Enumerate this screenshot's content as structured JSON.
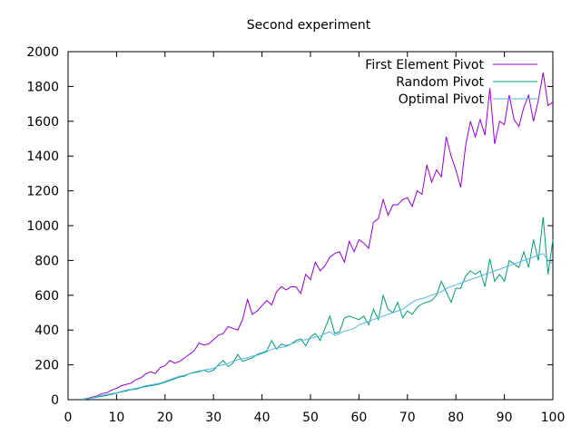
{
  "chart_data": {
    "type": "line",
    "title": "Second experiment",
    "xlabel": "",
    "ylabel": "",
    "xlim": [
      0,
      100
    ],
    "ylim": [
      0,
      2000
    ],
    "xticks": [
      0,
      10,
      20,
      30,
      40,
      50,
      60,
      70,
      80,
      90,
      100
    ],
    "yticks": [
      0,
      200,
      400,
      600,
      800,
      1000,
      1200,
      1400,
      1600,
      1800,
      2000
    ],
    "legend_position": "top-right",
    "grid": false,
    "series": [
      {
        "name": "First Element Pivot",
        "color": "#9400d3",
        "x": [
          3,
          4,
          5,
          6,
          7,
          8,
          9,
          10,
          11,
          12,
          13,
          14,
          15,
          16,
          17,
          18,
          19,
          20,
          21,
          22,
          23,
          24,
          25,
          26,
          27,
          28,
          29,
          30,
          31,
          32,
          33,
          34,
          35,
          36,
          37,
          38,
          39,
          40,
          41,
          42,
          43,
          44,
          45,
          46,
          47,
          48,
          49,
          50,
          51,
          52,
          53,
          54,
          55,
          56,
          57,
          58,
          59,
          60,
          61,
          62,
          63,
          64,
          65,
          66,
          67,
          68,
          69,
          70,
          71,
          72,
          73,
          74,
          75,
          76,
          77,
          78,
          79,
          80,
          81,
          82,
          83,
          84,
          85,
          86,
          87,
          88,
          89,
          90,
          91,
          92,
          93,
          94,
          95,
          96,
          97,
          98,
          99,
          100
        ],
        "y": [
          3,
          8,
          15,
          22,
          35,
          40,
          55,
          65,
          80,
          88,
          95,
          115,
          125,
          148,
          160,
          150,
          185,
          195,
          225,
          210,
          220,
          240,
          260,
          280,
          325,
          315,
          320,
          345,
          370,
          380,
          420,
          410,
          400,
          460,
          575,
          490,
          510,
          540,
          570,
          545,
          620,
          650,
          630,
          650,
          648,
          610,
          720,
          690,
          790,
          740,
          770,
          820,
          840,
          850,
          790,
          910,
          850,
          920,
          900,
          870,
          1020,
          1040,
          1150,
          1060,
          1120,
          1120,
          1150,
          1160,
          1110,
          1200,
          1180,
          1350,
          1250,
          1320,
          1280,
          1510,
          1400,
          1320,
          1220,
          1460,
          1600,
          1510,
          1610,
          1520,
          1790,
          1470,
          1600,
          1580,
          1750,
          1610,
          1570,
          1680,
          1750,
          1600,
          1720,
          1880,
          1690,
          1710
        ]
      },
      {
        "name": "Random Pivot",
        "color": "#009e73",
        "x": [
          3,
          4,
          5,
          6,
          7,
          8,
          9,
          10,
          11,
          12,
          13,
          14,
          15,
          16,
          17,
          18,
          19,
          20,
          21,
          22,
          23,
          24,
          25,
          26,
          27,
          28,
          29,
          30,
          31,
          32,
          33,
          34,
          35,
          36,
          37,
          38,
          39,
          40,
          41,
          42,
          43,
          44,
          45,
          46,
          47,
          48,
          49,
          50,
          51,
          52,
          53,
          54,
          55,
          56,
          57,
          58,
          59,
          60,
          61,
          62,
          63,
          64,
          65,
          66,
          67,
          68,
          69,
          70,
          71,
          72,
          73,
          74,
          75,
          76,
          77,
          78,
          79,
          80,
          81,
          82,
          83,
          84,
          85,
          86,
          87,
          88,
          89,
          90,
          91,
          92,
          93,
          94,
          95,
          96,
          97,
          98,
          99,
          100
        ],
        "y": [
          2,
          5,
          10,
          15,
          20,
          25,
          30,
          38,
          45,
          50,
          58,
          60,
          70,
          75,
          80,
          85,
          90,
          100,
          110,
          120,
          130,
          135,
          150,
          155,
          160,
          170,
          160,
          170,
          200,
          225,
          190,
          210,
          260,
          220,
          230,
          240,
          260,
          270,
          280,
          340,
          290,
          320,
          310,
          320,
          340,
          350,
          310,
          360,
          380,
          340,
          410,
          480,
          380,
          390,
          470,
          480,
          470,
          460,
          480,
          430,
          520,
          460,
          600,
          520,
          500,
          560,
          470,
          510,
          490,
          530,
          550,
          560,
          570,
          600,
          680,
          620,
          560,
          640,
          640,
          710,
          740,
          720,
          740,
          650,
          810,
          680,
          720,
          680,
          800,
          780,
          760,
          850,
          760,
          920,
          800,
          1050,
          720,
          920
        ]
      },
      {
        "name": "Optimal Pivot",
        "color": "#56b4e9",
        "x": [
          3,
          4,
          5,
          6,
          7,
          8,
          9,
          10,
          11,
          12,
          13,
          14,
          15,
          16,
          17,
          18,
          19,
          20,
          21,
          22,
          23,
          24,
          25,
          26,
          27,
          28,
          29,
          30,
          31,
          32,
          33,
          34,
          35,
          36,
          37,
          38,
          39,
          40,
          41,
          42,
          43,
          44,
          45,
          46,
          47,
          48,
          49,
          50,
          51,
          52,
          53,
          54,
          55,
          56,
          57,
          58,
          59,
          60,
          61,
          62,
          63,
          64,
          65,
          66,
          67,
          68,
          69,
          70,
          71,
          72,
          73,
          74,
          75,
          76,
          77,
          78,
          79,
          80,
          81,
          82,
          83,
          84,
          85,
          86,
          87,
          88,
          89,
          90,
          91,
          92,
          93,
          94,
          95,
          96,
          97,
          98,
          99,
          100
        ],
        "y": [
          3,
          6,
          12,
          18,
          25,
          30,
          35,
          40,
          48,
          55,
          60,
          65,
          72,
          80,
          85,
          90,
          95,
          105,
          115,
          125,
          135,
          140,
          150,
          158,
          165,
          170,
          175,
          180,
          195,
          200,
          210,
          220,
          230,
          235,
          240,
          250,
          255,
          265,
          275,
          290,
          295,
          300,
          305,
          320,
          330,
          340,
          345,
          350,
          360,
          365,
          380,
          390,
          370,
          380,
          395,
          400,
          410,
          430,
          440,
          450,
          460,
          470,
          480,
          490,
          500,
          510,
          520,
          540,
          560,
          575,
          580,
          590,
          600,
          610,
          620,
          640,
          650,
          660,
          670,
          680,
          690,
          700,
          710,
          720,
          730,
          740,
          750,
          760,
          770,
          780,
          790,
          800,
          810,
          820,
          830,
          840,
          800,
          780
        ]
      }
    ]
  }
}
